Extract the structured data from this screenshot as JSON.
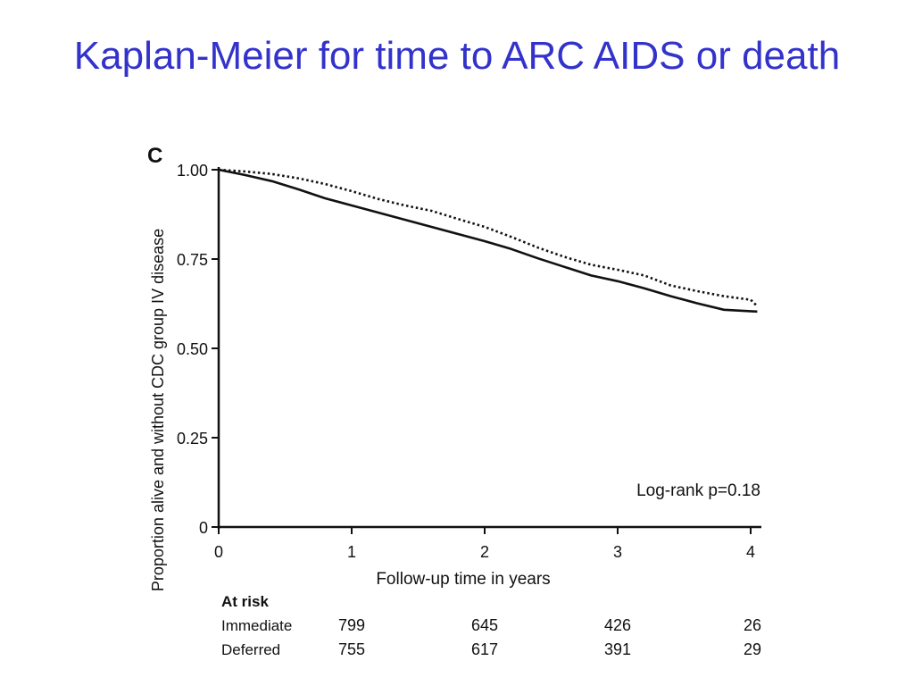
{
  "slide": {
    "title": "Kaplan-Meier for time to ARC AIDS or death"
  },
  "chart_data": {
    "type": "line",
    "panel_label": "C",
    "xlabel": "Follow-up time in years",
    "ylabel": "Proportion alive and without CDC group IV disease",
    "xlim": [
      0,
      4.05
    ],
    "ylim": [
      0,
      1
    ],
    "x_ticks": [
      0,
      1,
      2,
      3,
      4
    ],
    "x_tick_labels": [
      "0",
      "1",
      "2",
      "3",
      "4"
    ],
    "y_ticks": [
      0,
      0.25,
      0.5,
      0.75,
      1
    ],
    "y_tick_labels": [
      "0",
      "0.25",
      "0.50",
      "0.75",
      "1.00"
    ],
    "grid": false,
    "annotation": "Log-rank p=0.18",
    "series": [
      {
        "style": "solid",
        "color": "#111111",
        "x": [
          0,
          0.2,
          0.4,
          0.6,
          0.8,
          1.0,
          1.2,
          1.4,
          1.6,
          1.8,
          2.0,
          2.2,
          2.4,
          2.6,
          2.8,
          3.0,
          3.2,
          3.4,
          3.6,
          3.8,
          4.0,
          4.05
        ],
        "y": [
          1.0,
          0.985,
          0.968,
          0.945,
          0.92,
          0.9,
          0.88,
          0.86,
          0.84,
          0.82,
          0.8,
          0.778,
          0.752,
          0.728,
          0.704,
          0.688,
          0.668,
          0.646,
          0.626,
          0.608,
          0.604,
          0.603
        ]
      },
      {
        "style": "dotted",
        "color": "#111111",
        "x": [
          0,
          0.2,
          0.4,
          0.6,
          0.8,
          1.0,
          1.2,
          1.4,
          1.6,
          1.8,
          2.0,
          2.2,
          2.4,
          2.6,
          2.8,
          3.0,
          3.2,
          3.4,
          3.6,
          3.8,
          4.0,
          4.05
        ],
        "y": [
          1.0,
          0.995,
          0.988,
          0.976,
          0.96,
          0.94,
          0.918,
          0.9,
          0.885,
          0.862,
          0.84,
          0.812,
          0.782,
          0.756,
          0.734,
          0.72,
          0.704,
          0.676,
          0.66,
          0.646,
          0.636,
          0.618
        ]
      }
    ],
    "at_risk": {
      "header": "At risk",
      "columns_x": [
        1,
        2,
        3,
        4
      ],
      "rows": [
        {
          "label": "Immediate",
          "values": [
            "799",
            "645",
            "426",
            "26"
          ]
        },
        {
          "label": "Deferred",
          "values": [
            "755",
            "617",
            "391",
            "29"
          ]
        }
      ]
    }
  }
}
